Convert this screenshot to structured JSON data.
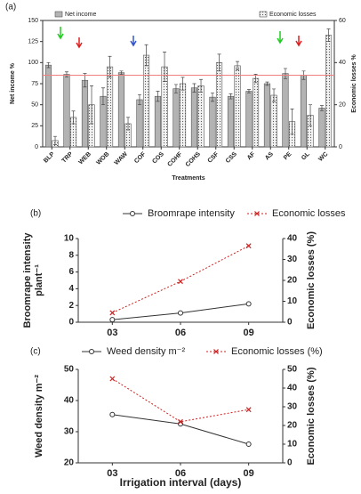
{
  "chart_data": [
    {
      "type": "bar",
      "panel_label": "(a)",
      "xlabel": "Treatments",
      "ylabel": "Net income %",
      "y2label": "Economic losses %",
      "categories": [
        "BLP",
        "TRP",
        "WEB",
        "WOB",
        "WAW",
        "COF",
        "COS",
        "COHF",
        "COHS",
        "CSF",
        "CSS",
        "AF",
        "AS",
        "PE",
        "GL",
        "WC"
      ],
      "series": [
        {
          "name": "Net income",
          "color": "#b3b3b3",
          "hatch": "none",
          "values": [
            97,
            86,
            79,
            60,
            88,
            56,
            60,
            69,
            70,
            59,
            60,
            66,
            75,
            87,
            85,
            46
          ],
          "errors": [
            3,
            3,
            8,
            10,
            2,
            6,
            6,
            5,
            5,
            5,
            3,
            2,
            2,
            6,
            5,
            3
          ]
        },
        {
          "name": "Economic losses",
          "color": "#f2f2f2",
          "hatch": "dots",
          "axis": "y2",
          "values": [
            3,
            14,
            20,
            38,
            11,
            43.5,
            38,
            30,
            29,
            40,
            38.5,
            32.5,
            24.5,
            12,
            15,
            53
          ],
          "errors": [
            2,
            3,
            9,
            5,
            3,
            5,
            7,
            3,
            3,
            4,
            2,
            2,
            3,
            6,
            5,
            3
          ]
        }
      ],
      "ylim": [
        0,
        150
      ],
      "yticks": [
        0,
        25,
        50,
        75,
        100,
        125,
        150
      ],
      "y2lim": [
        0,
        60
      ],
      "y2ticks": [
        0,
        20,
        40,
        60
      ],
      "hline": {
        "value": 85,
        "color": "#f08080"
      }
    },
    {
      "type": "line",
      "panel_label": "(b)",
      "ylabel": [
        "Broomrape intensity",
        "plant⁻¹"
      ],
      "y2label": "Economic losses (%)",
      "categories": [
        "03",
        "06",
        "09"
      ],
      "series": [
        {
          "name": "Broomrape intensity",
          "color": "#333333",
          "marker": "circle",
          "linestyle": "solid",
          "values": [
            0.3,
            1.1,
            2.2
          ]
        },
        {
          "name": "Economic losses",
          "color": "#cc2222",
          "marker": "x",
          "linestyle": "dotted",
          "axis": "y2",
          "values": [
            4.5,
            19.5,
            36.5
          ]
        }
      ],
      "ylim": [
        0,
        10
      ],
      "yticks": [
        0,
        2,
        4,
        6,
        8,
        10
      ],
      "y2lim": [
        0,
        40
      ],
      "y2ticks": [
        0,
        10,
        20,
        30,
        40
      ]
    },
    {
      "type": "line",
      "panel_label": "(c)",
      "xlabel": "Irrigation interval (days)",
      "ylabel": [
        "Weed density m⁻²"
      ],
      "y2label": "Economic losses (%)",
      "categories": [
        "03",
        "06",
        "09"
      ],
      "series": [
        {
          "name": "Weed density m⁻²",
          "color": "#333333",
          "marker": "circle",
          "linestyle": "solid",
          "values": [
            35.5,
            32.5,
            26
          ]
        },
        {
          "name": "Economic losses (%)",
          "color": "#cc2222",
          "marker": "x",
          "linestyle": "dotted",
          "axis": "y2",
          "values": [
            45,
            22,
            28.5
          ]
        }
      ],
      "ylim": [
        20,
        50
      ],
      "yticks": [
        20,
        30,
        40,
        50
      ],
      "y2lim": [
        0,
        50
      ],
      "y2ticks": [
        0,
        10,
        20,
        30,
        40,
        50
      ]
    }
  ]
}
